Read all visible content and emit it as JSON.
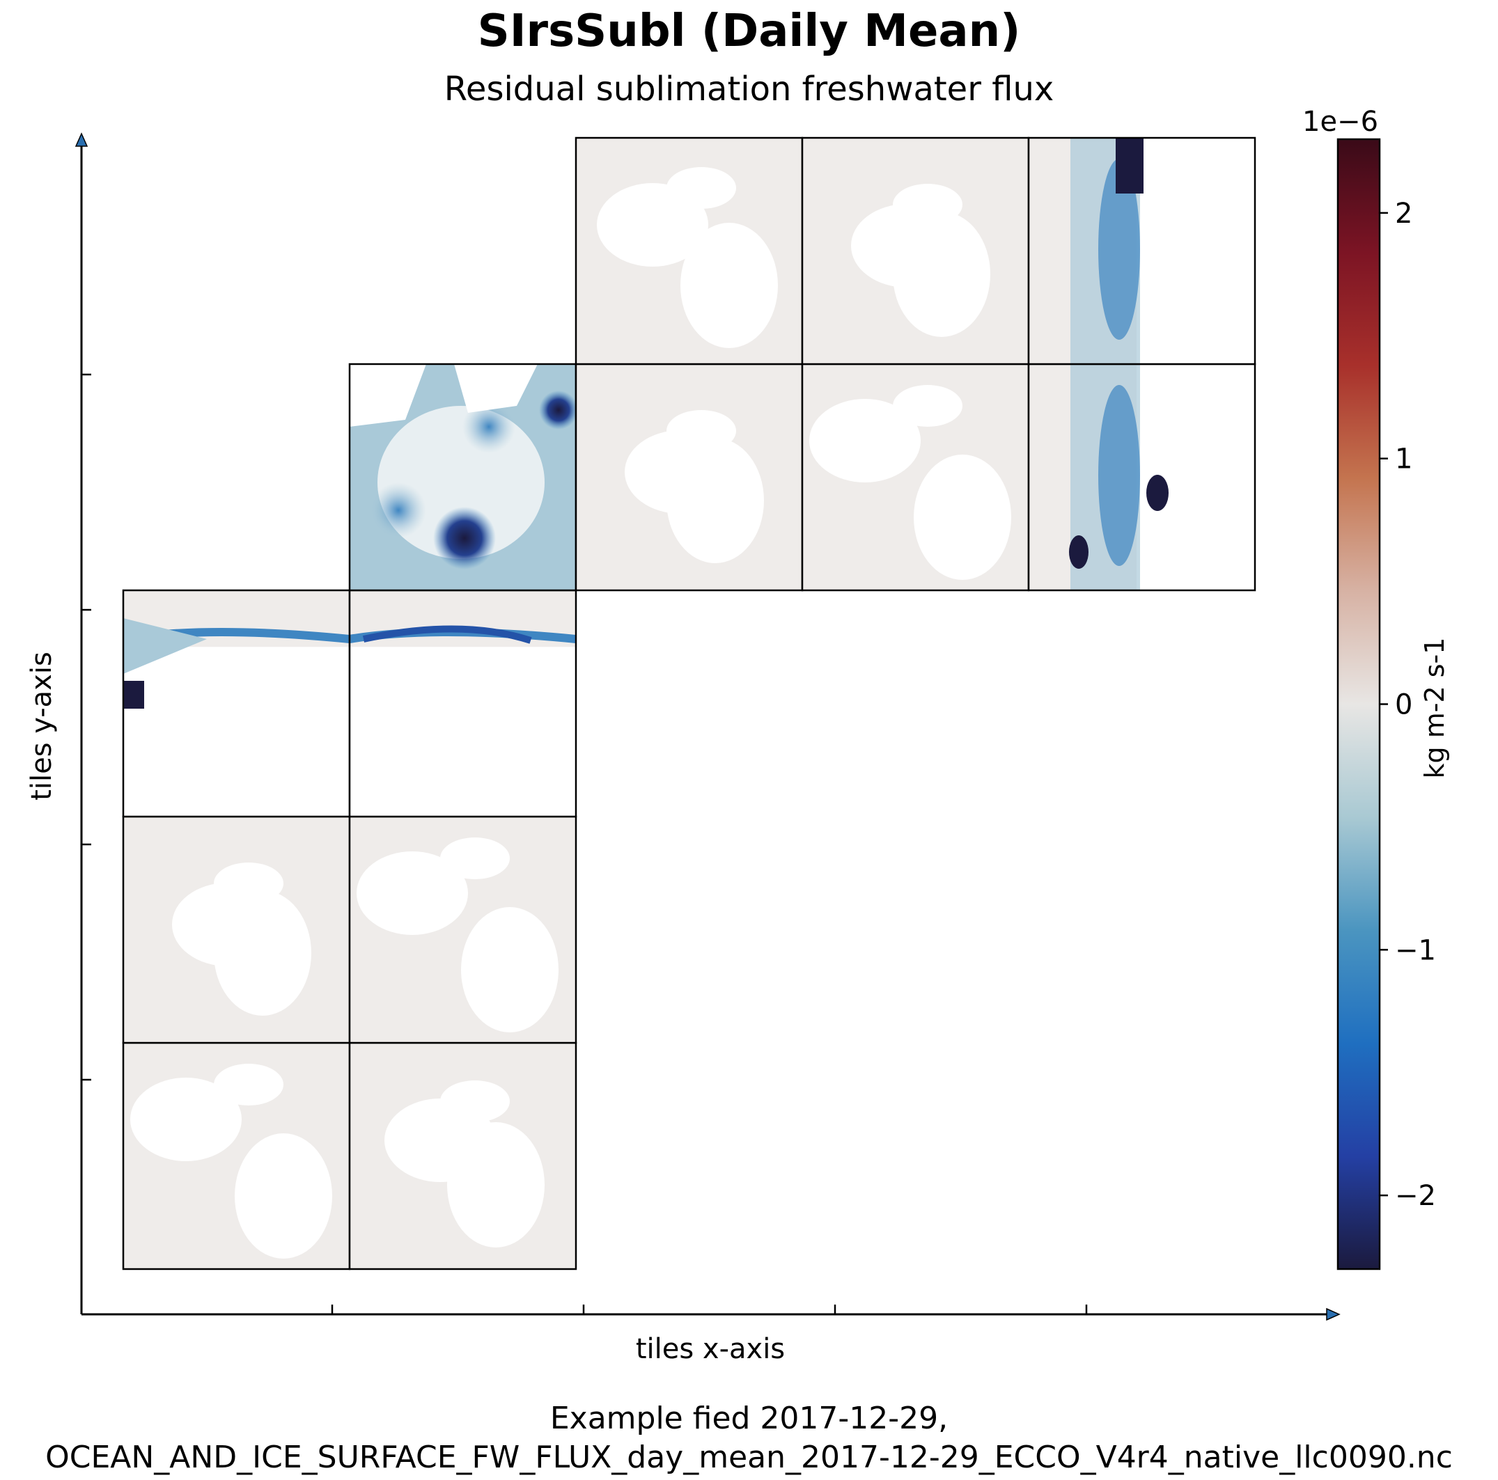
{
  "chart_data": {
    "type": "heatmap",
    "title": "SIrsSubl (Daily Mean)",
    "subtitle": "Residual sublimation freshwater flux",
    "xlabel": "tiles x-axis",
    "ylabel": "tiles y-axis",
    "colorbar": {
      "label": "kg m-2 s-1",
      "multiplier": "1e−6",
      "range": [
        -2.3,
        2.3
      ],
      "ticks": [
        2,
        1,
        0,
        -1,
        -2
      ],
      "tick_labels": [
        "2",
        "1",
        "0",
        "−1",
        "−2"
      ],
      "colors": [
        "#1b1a3e",
        "#2440a4",
        "#1f6fc0",
        "#4b95c0",
        "#a9c9d3",
        "#e8e6e4",
        "#d7b2a4",
        "#c4744f",
        "#a8302b",
        "#7c1424",
        "#3a0a18"
      ]
    },
    "tiles": [
      {
        "col": 0,
        "row": 0,
        "content": "land-ocean"
      },
      {
        "col": 1,
        "row": 0,
        "content": "land-ocean"
      },
      {
        "col": 0,
        "row": 1,
        "content": "land-ocean"
      },
      {
        "col": 1,
        "row": 1,
        "content": "land-ocean"
      },
      {
        "col": 0,
        "row": 2,
        "content": "antarctic-ice"
      },
      {
        "col": 1,
        "row": 2,
        "content": "antarctic-ice"
      },
      {
        "col": 1,
        "row": 3,
        "content": "arctic-ice"
      },
      {
        "col": 2,
        "row": 3,
        "content": "land-ocean"
      },
      {
        "col": 3,
        "row": 3,
        "content": "land-ocean"
      },
      {
        "col": 4,
        "row": 3,
        "content": "antarctic-strip"
      },
      {
        "col": 2,
        "row": 4,
        "content": "land-ocean"
      },
      {
        "col": 3,
        "row": 4,
        "content": "land-ocean"
      },
      {
        "col": 4,
        "row": 4,
        "content": "antarctic-strip"
      }
    ],
    "colors": {
      "ocean": "#efecea",
      "land": "#ffffff",
      "strong_negative": "#1b1a3e",
      "moderate_negative": "#3f86c2",
      "weak_negative": "#a9c9d8"
    }
  },
  "caption": {
    "line1": "Example fied 2017-12-29,",
    "line2": "OCEAN_AND_ICE_SURFACE_FW_FLUX_day_mean_2017-12-29_ECCO_V4r4_native_llc0090.nc"
  }
}
